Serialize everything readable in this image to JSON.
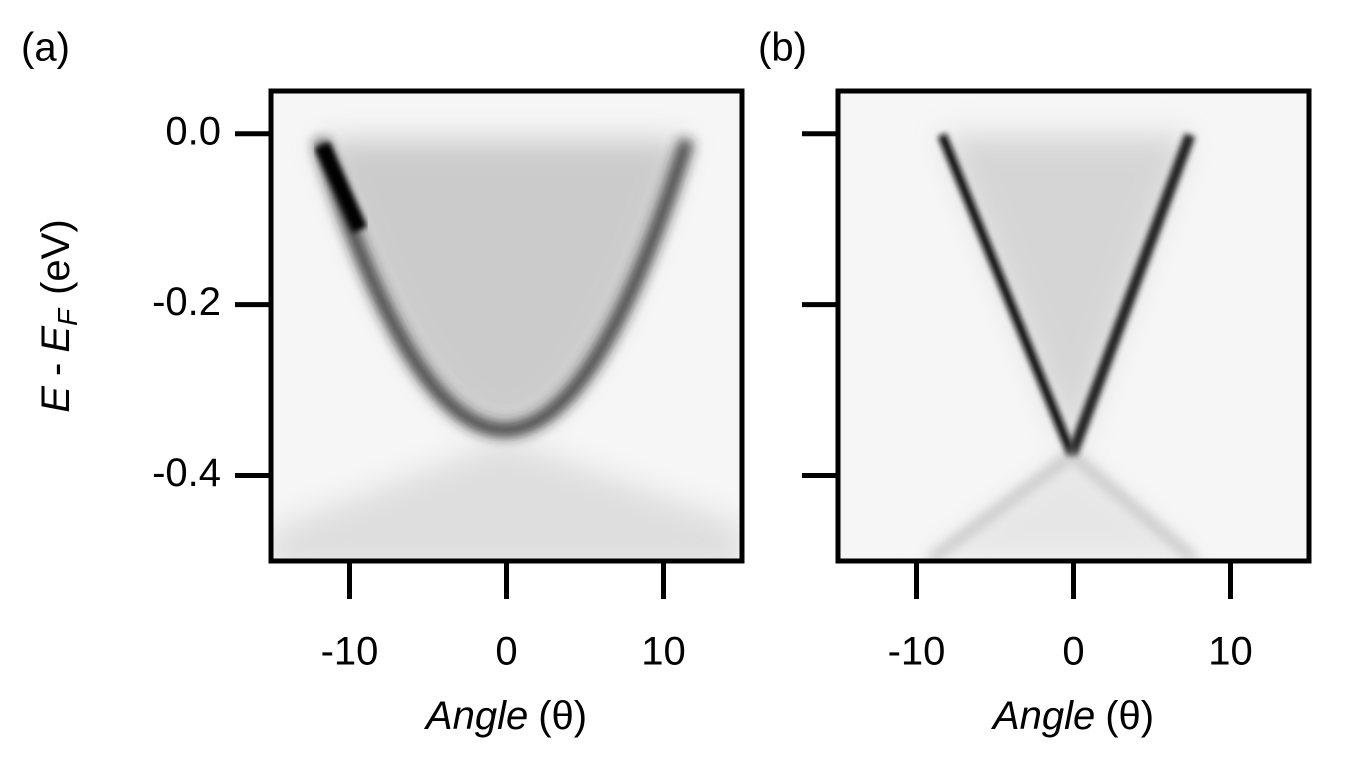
{
  "chart_data": [
    {
      "type": "image",
      "panel_label": "(a)",
      "xlabel_parts": [
        "Angle",
        "(θ)"
      ],
      "ylabel_parts": [
        "E",
        "-",
        "E",
        "F",
        "(eV)"
      ],
      "xlim": [
        -15,
        15
      ],
      "ylim": [
        -0.5,
        0.05
      ],
      "xticks": [
        -10,
        0,
        10
      ],
      "yticks": [
        {
          "value": 0,
          "label": "0.0"
        },
        {
          "value": -0.2,
          "label": "-0.2"
        },
        {
          "value": -0.4,
          "label": "-0.4"
        }
      ],
      "ytick_labels": true
    },
    {
      "type": "image",
      "panel_label": "(b)",
      "xlabel_parts": [
        "Angle",
        "(θ)"
      ],
      "xlim": [
        -15,
        15
      ],
      "ylim": [
        -0.5,
        0.05
      ],
      "xticks": [
        -10,
        0,
        10
      ],
      "yticks": [
        0,
        -0.2,
        -0.4
      ],
      "ytick_labels": false
    }
  ]
}
